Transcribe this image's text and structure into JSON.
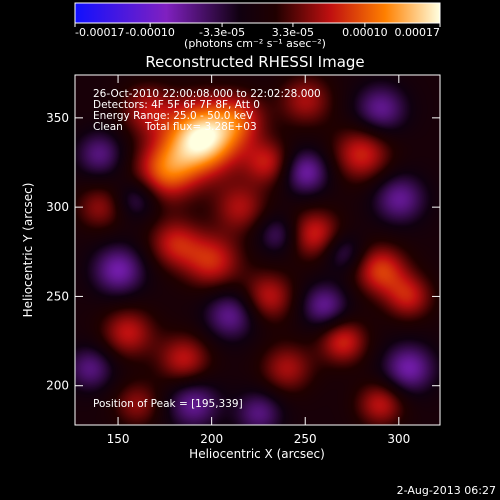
{
  "chart_data": {
    "type": "heatmap",
    "title": "Reconstructed RHESSI Image",
    "xlabel": "Heliocentric X (arcsec)",
    "ylabel": "Heliocentric Y (arcsec)",
    "xlim": [
      127,
      322
    ],
    "ylim": [
      178,
      374
    ],
    "x_ticks": [
      150,
      200,
      250,
      300
    ],
    "y_ticks": [
      200,
      250,
      300,
      350
    ],
    "colorbar": {
      "range": [
        -0.00017,
        0.00017
      ],
      "tick_values": [
        -0.00017,
        -0.0001,
        -3.3e-05,
        3.3e-05,
        0.0001,
        0.00017
      ],
      "tick_labels": [
        "-0.00017",
        "-0.00010",
        "-3.3e-05",
        "3.3e-05",
        "0.00010",
        "0.00017"
      ],
      "unit_label": "(photons cm⁻² s⁻¹ asec⁻²)"
    },
    "annotations": {
      "time_range": "26-Oct-2010 22:00:08.000 to 22:02:28.000",
      "detectors": "Detectors: 4F 5F 6F 7F 8F, Att 0",
      "energy": "Energy Range: 25.0 - 50.0 keV",
      "method": "Clean",
      "total_flux": "Total flux= 3.28E+03",
      "peak": "Position of Peak = [195,339]"
    },
    "peak_position": [
      195,
      339
    ],
    "sources": [
      {
        "x": 195,
        "y": 339,
        "amp": 1.0,
        "w": 14
      },
      {
        "x": 175,
        "y": 320,
        "amp": 0.55,
        "w": 12
      },
      {
        "x": 165,
        "y": 355,
        "amp": 0.35,
        "w": 10
      },
      {
        "x": 215,
        "y": 350,
        "amp": 0.35,
        "w": 10
      },
      {
        "x": 140,
        "y": 300,
        "amp": 0.3,
        "w": 9
      },
      {
        "x": 180,
        "y": 280,
        "amp": 0.4,
        "w": 10
      },
      {
        "x": 200,
        "y": 270,
        "amp": 0.45,
        "w": 11
      },
      {
        "x": 215,
        "y": 300,
        "amp": 0.35,
        "w": 10
      },
      {
        "x": 230,
        "y": 250,
        "amp": 0.4,
        "w": 10
      },
      {
        "x": 255,
        "y": 285,
        "amp": 0.45,
        "w": 10
      },
      {
        "x": 280,
        "y": 330,
        "amp": 0.45,
        "w": 11
      },
      {
        "x": 290,
        "y": 265,
        "amp": 0.5,
        "w": 10
      },
      {
        "x": 305,
        "y": 250,
        "amp": 0.4,
        "w": 9
      },
      {
        "x": 155,
        "y": 230,
        "amp": 0.4,
        "w": 10
      },
      {
        "x": 185,
        "y": 215,
        "amp": 0.4,
        "w": 10
      },
      {
        "x": 240,
        "y": 210,
        "amp": 0.35,
        "w": 10
      },
      {
        "x": 270,
        "y": 225,
        "amp": 0.45,
        "w": 9
      },
      {
        "x": 290,
        "y": 190,
        "amp": 0.4,
        "w": 9
      },
      {
        "x": 160,
        "y": 190,
        "amp": 0.3,
        "w": 9
      },
      {
        "x": 250,
        "y": 360,
        "amp": 0.35,
        "w": 10
      },
      {
        "x": 230,
        "y": 325,
        "amp": 0.4,
        "w": 9
      },
      {
        "x": 250,
        "y": 320,
        "amp": -0.45,
        "w": 9
      },
      {
        "x": 300,
        "y": 305,
        "amp": -0.4,
        "w": 10
      },
      {
        "x": 290,
        "y": 355,
        "amp": -0.4,
        "w": 10
      },
      {
        "x": 150,
        "y": 265,
        "amp": -0.45,
        "w": 10
      },
      {
        "x": 140,
        "y": 330,
        "amp": -0.35,
        "w": 9
      },
      {
        "x": 210,
        "y": 240,
        "amp": -0.4,
        "w": 10
      },
      {
        "x": 190,
        "y": 190,
        "amp": -0.4,
        "w": 10
      },
      {
        "x": 260,
        "y": 245,
        "amp": -0.4,
        "w": 9
      },
      {
        "x": 305,
        "y": 210,
        "amp": -0.45,
        "w": 10
      },
      {
        "x": 225,
        "y": 185,
        "amp": -0.35,
        "w": 9
      },
      {
        "x": 135,
        "y": 210,
        "amp": -0.35,
        "w": 9
      },
      {
        "x": 270,
        "y": 275,
        "amp": -0.3,
        "w": 8
      },
      {
        "x": 160,
        "y": 305,
        "amp": -0.3,
        "w": 8
      },
      {
        "x": 235,
        "y": 285,
        "amp": -0.3,
        "w": 8
      }
    ]
  },
  "footer": {
    "timestamp": "2-Aug-2013 06:27"
  }
}
